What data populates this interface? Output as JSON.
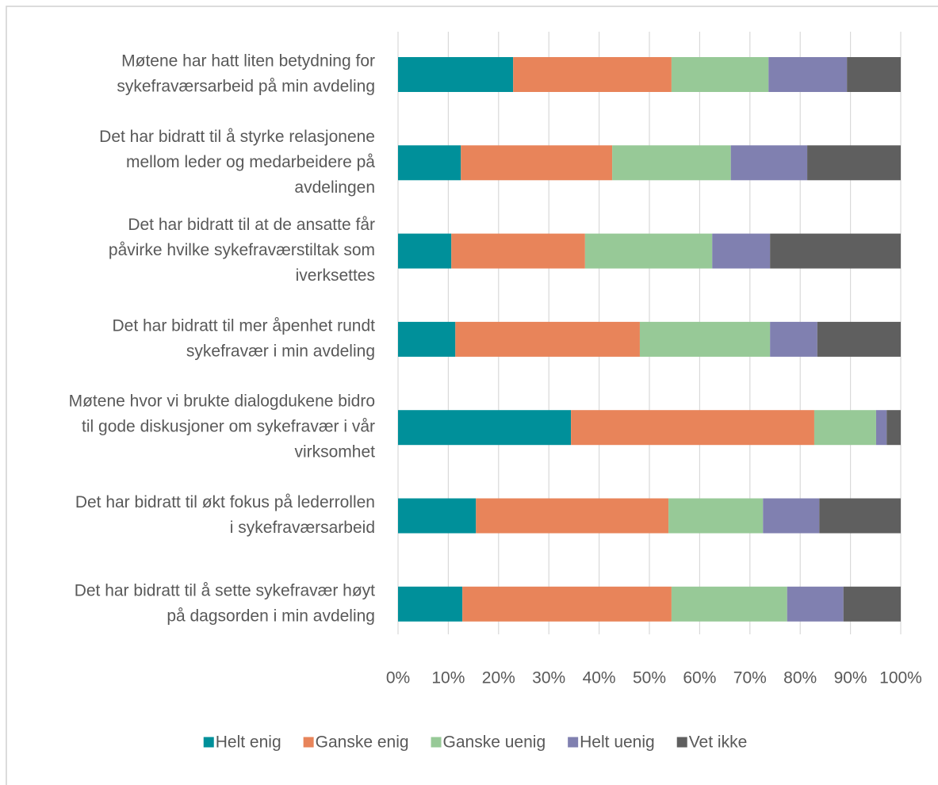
{
  "chart_data": {
    "type": "stacked-barh",
    "categories": [
      [
        "Møtene har hatt liten betydning for",
        "sykefraværsarbeid på min avdeling"
      ],
      [
        "Det har bidratt til å styrke relasjonene",
        "mellom leder og medarbeidere på",
        "avdelingen"
      ],
      [
        "Det har bidratt til at de ansatte får",
        "påvirke hvilke sykefraværstiltak som",
        "iverksettes"
      ],
      [
        "Det har bidratt til mer åpenhet rundt",
        "sykefravær i min avdeling"
      ],
      [
        "Møtene hvor vi brukte dialogdukene bidro",
        "til gode diskusjoner om sykefravær i vår",
        "virksomhet"
      ],
      [
        "Det har bidratt til økt fokus på lederrollen",
        "i sykefraværsarbeid"
      ],
      [
        "Det har bidratt til å sette sykefravær høyt",
        "på dagsorden i min avdeling"
      ]
    ],
    "series": [
      {
        "name": "Helt enig",
        "color": "#00909a",
        "values": [
          22.9,
          12.5,
          10.6,
          11.4,
          34.4,
          15.5,
          12.8
        ]
      },
      {
        "name": "Ganske enig",
        "color": "#e8845a",
        "values": [
          31.5,
          30.1,
          26.6,
          36.7,
          48.4,
          38.3,
          41.6
        ]
      },
      {
        "name": "Ganske uenig",
        "color": "#97c997",
        "values": [
          19.3,
          23.6,
          25.3,
          25.9,
          12.3,
          18.8,
          23.0
        ]
      },
      {
        "name": "Helt uenig",
        "color": "#8080b0",
        "values": [
          15.6,
          15.2,
          11.5,
          9.4,
          2.1,
          11.2,
          11.2
        ]
      },
      {
        "name": "Vet ikke",
        "color": "#5f5f5f",
        "values": [
          10.7,
          18.6,
          26.0,
          16.6,
          2.8,
          16.2,
          11.4
        ]
      }
    ],
    "xlim": [
      0,
      100
    ],
    "xticks": [
      {
        "value": 0,
        "label": "0%"
      },
      {
        "value": 10,
        "label": "10%"
      },
      {
        "value": 20,
        "label": "20%"
      },
      {
        "value": 30,
        "label": "30%"
      },
      {
        "value": 40,
        "label": "40%"
      },
      {
        "value": 50,
        "label": "50%"
      },
      {
        "value": 60,
        "label": "60%"
      },
      {
        "value": 70,
        "label": "70%"
      },
      {
        "value": 80,
        "label": "80%"
      },
      {
        "value": 90,
        "label": "90%"
      },
      {
        "value": 100,
        "label": "100%"
      }
    ],
    "grid": true,
    "legend": "bottom"
  }
}
